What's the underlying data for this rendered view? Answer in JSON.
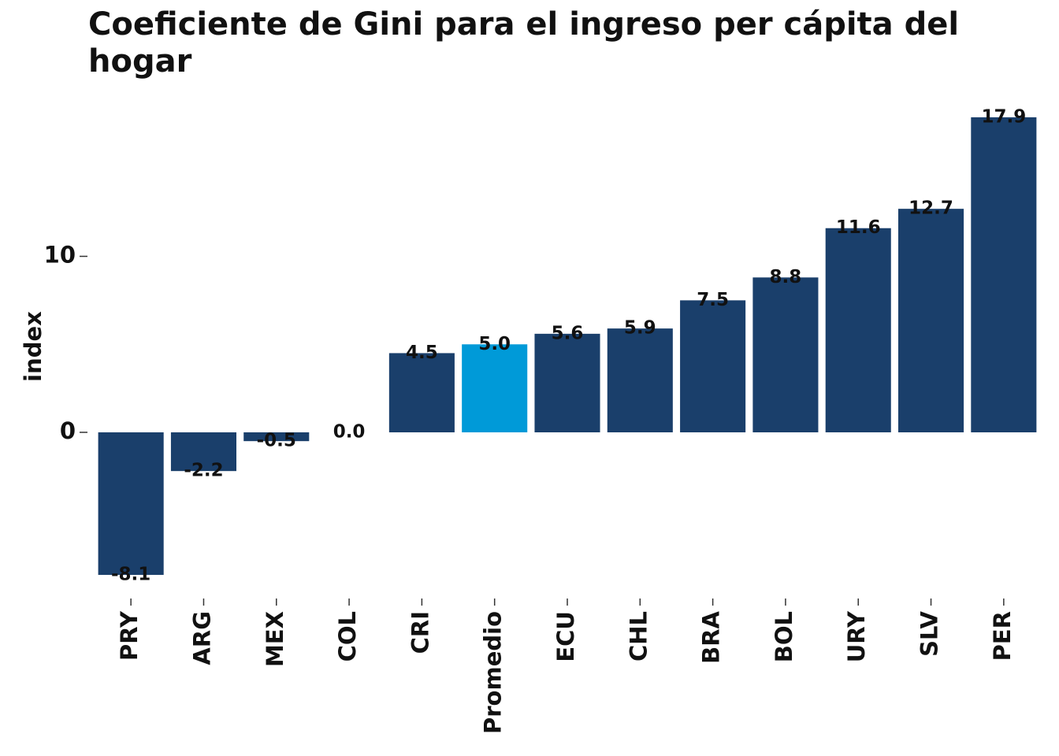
{
  "chart_data": {
    "type": "bar",
    "title": "Coeficiente de Gini para el ingreso per cápita del hogar",
    "xlabel": "",
    "ylabel": "index",
    "categories": [
      "PRY",
      "ARG",
      "MEX",
      "COL",
      "CRI",
      "Promedio",
      "ECU",
      "CHL",
      "BRA",
      "BOL",
      "URY",
      "SLV",
      "PER"
    ],
    "values": [
      -8.1,
      -2.2,
      -0.5,
      0.0,
      4.5,
      5.0,
      5.6,
      5.9,
      7.5,
      8.8,
      11.6,
      12.7,
      17.9
    ],
    "data_labels": [
      "-8.1",
      "-2.2",
      "-0.5",
      "0.0",
      "4.5",
      "5.0",
      "5.6",
      "5.9",
      "7.5",
      "8.8",
      "11.6",
      "12.7",
      "17.9"
    ],
    "highlight_category": "Promedio",
    "y_ticks": [
      0,
      10
    ],
    "y_tick_labels": [
      "0",
      "10"
    ],
    "ylim": [
      -9.5,
      18.5
    ],
    "grid": false,
    "legend": "none",
    "colors": {
      "bar": "#1a3f6b",
      "highlight": "#009ad8",
      "text": "#111111"
    }
  }
}
